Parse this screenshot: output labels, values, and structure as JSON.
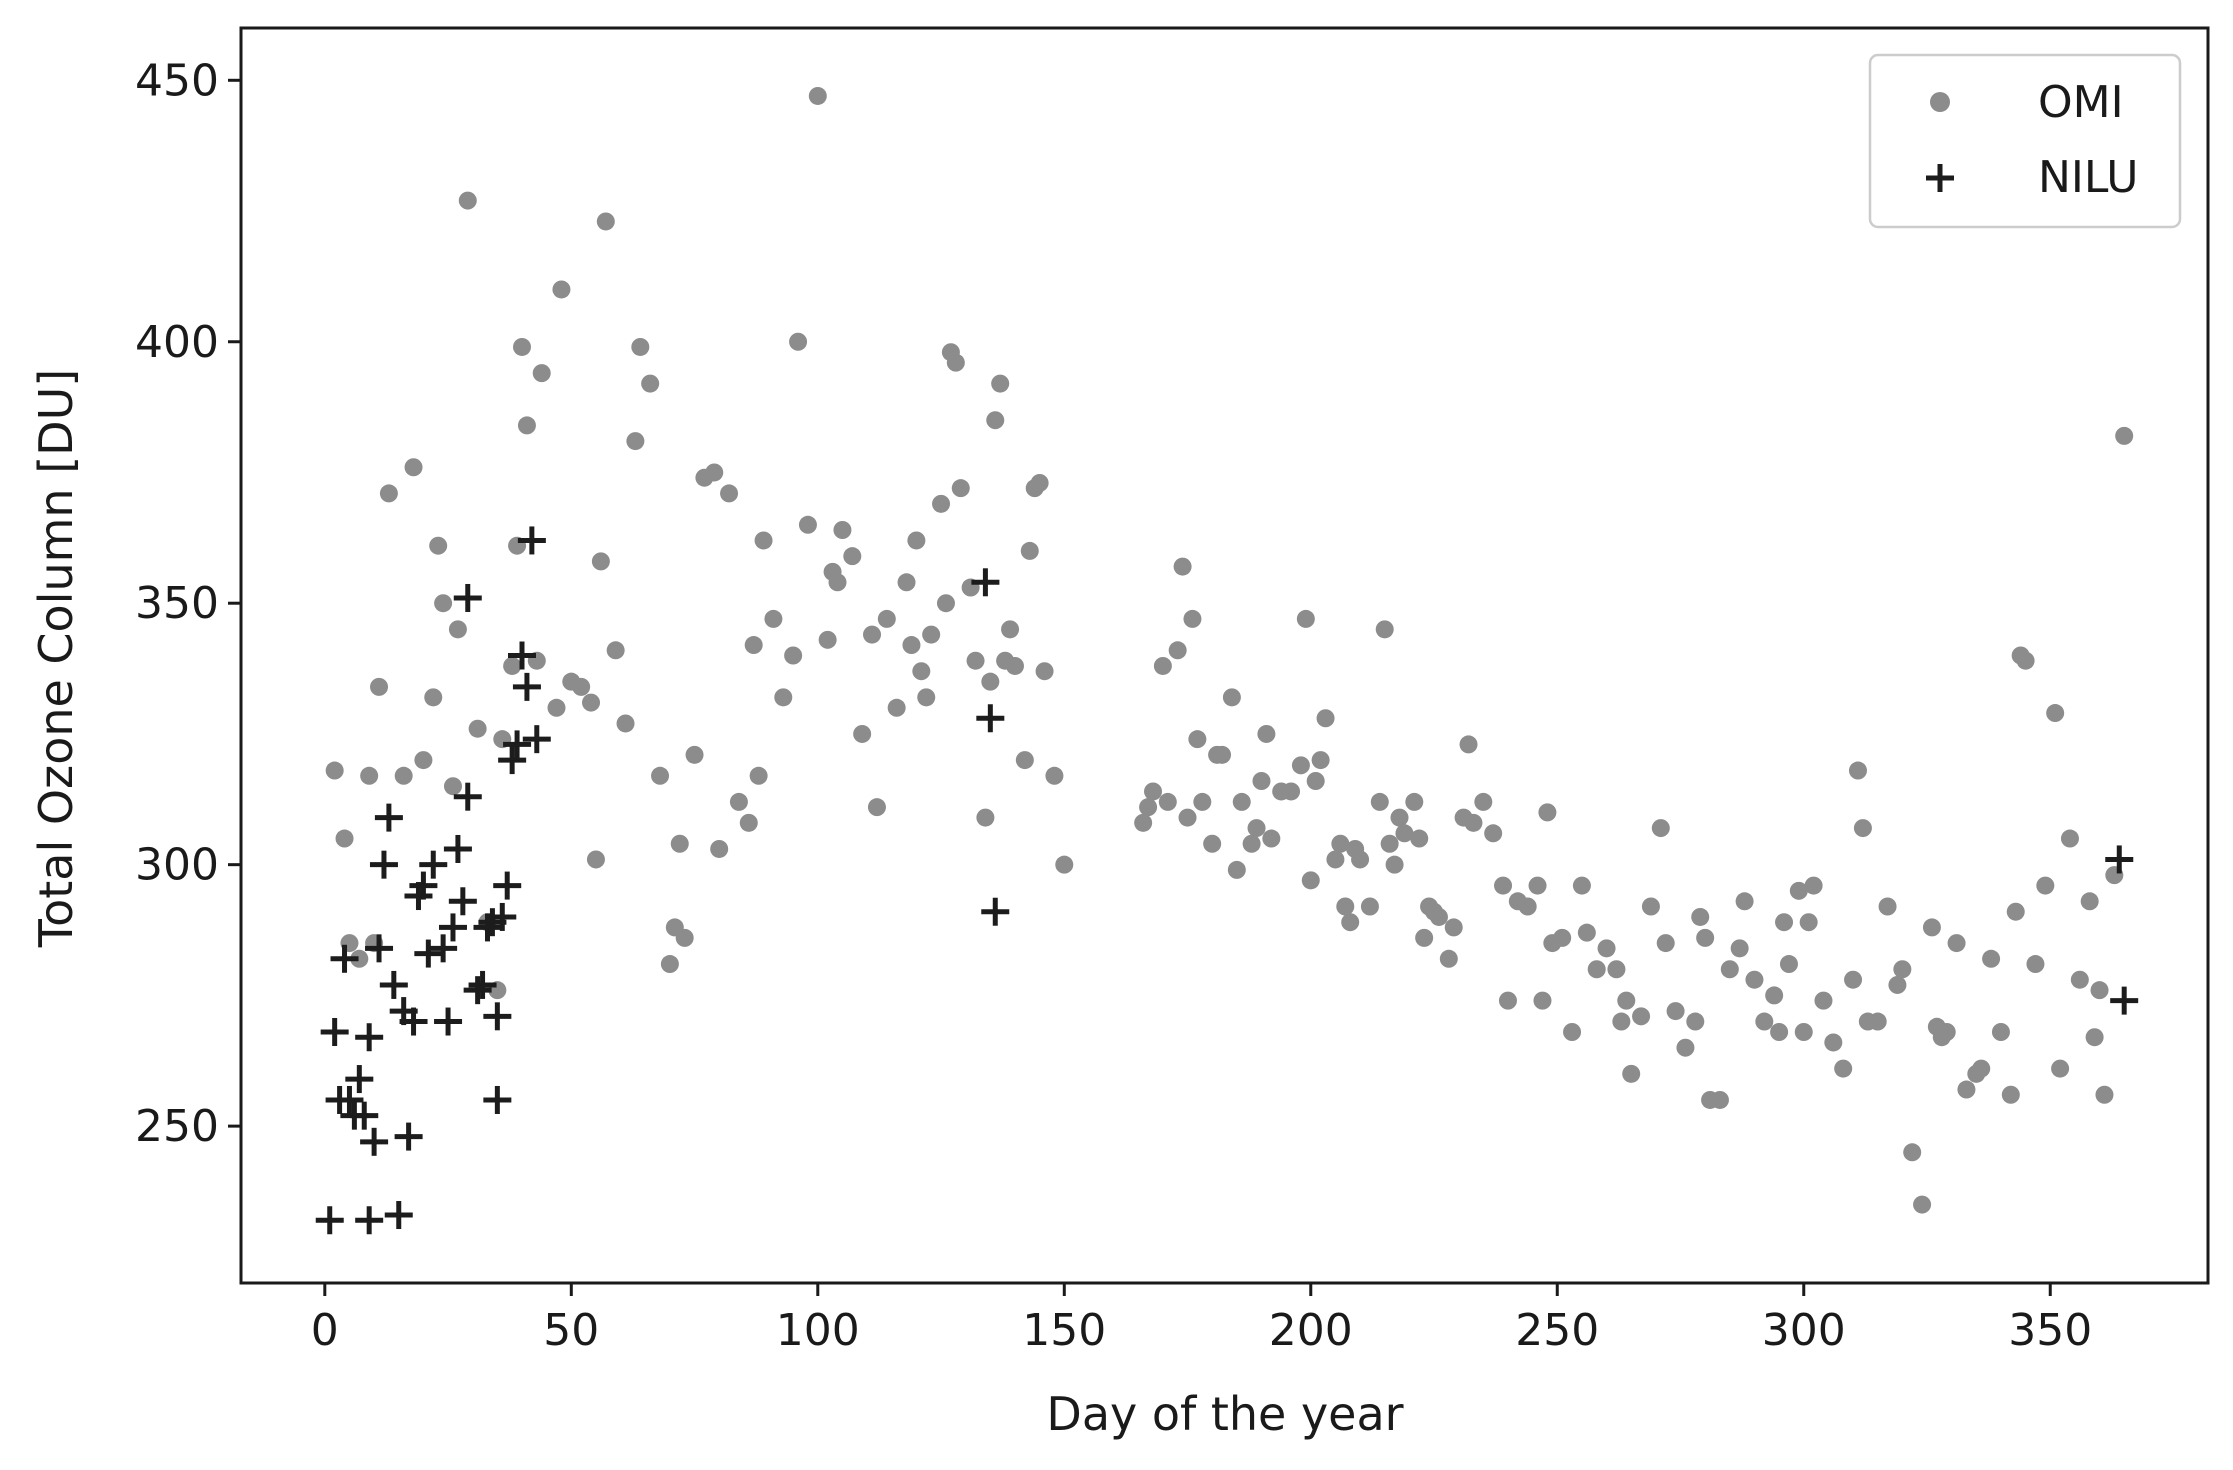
{
  "chart_data": {
    "type": "scatter",
    "title": "",
    "xlabel": "Day of the year",
    "ylabel": "Total Ozone Column  [DU]",
    "xlim": [
      -17,
      382
    ],
    "ylim": [
      220,
      460
    ],
    "xticks": [
      0,
      50,
      100,
      150,
      200,
      250,
      300,
      350
    ],
    "yticks": [
      250,
      300,
      350,
      400,
      450
    ],
    "grid": false,
    "legend_position": "top-right",
    "series": [
      {
        "name": "OMI",
        "marker": "circle",
        "color": "#8c8c8c",
        "points": [
          [
            2,
            318
          ],
          [
            4,
            305
          ],
          [
            5,
            285
          ],
          [
            7,
            282
          ],
          [
            9,
            317
          ],
          [
            10,
            285
          ],
          [
            11,
            334
          ],
          [
            13,
            371
          ],
          [
            16,
            317
          ],
          [
            18,
            376
          ],
          [
            20,
            320
          ],
          [
            22,
            332
          ],
          [
            23,
            361
          ],
          [
            24,
            350
          ],
          [
            26,
            315
          ],
          [
            27,
            345
          ],
          [
            29,
            427
          ],
          [
            31,
            326
          ],
          [
            33,
            289
          ],
          [
            35,
            276
          ],
          [
            36,
            324
          ],
          [
            38,
            338
          ],
          [
            39,
            361
          ],
          [
            40,
            399
          ],
          [
            41,
            384
          ],
          [
            43,
            339
          ],
          [
            44,
            394
          ],
          [
            47,
            330
          ],
          [
            48,
            410
          ],
          [
            50,
            335
          ],
          [
            52,
            334
          ],
          [
            54,
            331
          ],
          [
            55,
            301
          ],
          [
            56,
            358
          ],
          [
            57,
            423
          ],
          [
            59,
            341
          ],
          [
            61,
            327
          ],
          [
            63,
            381
          ],
          [
            64,
            399
          ],
          [
            66,
            392
          ],
          [
            68,
            317
          ],
          [
            70,
            281
          ],
          [
            71,
            288
          ],
          [
            72,
            304
          ],
          [
            73,
            286
          ],
          [
            75,
            321
          ],
          [
            77,
            374
          ],
          [
            79,
            375
          ],
          [
            80,
            303
          ],
          [
            82,
            371
          ],
          [
            84,
            312
          ],
          [
            86,
            308
          ],
          [
            87,
            342
          ],
          [
            88,
            317
          ],
          [
            89,
            362
          ],
          [
            91,
            347
          ],
          [
            93,
            332
          ],
          [
            95,
            340
          ],
          [
            96,
            400
          ],
          [
            98,
            365
          ],
          [
            100,
            447
          ],
          [
            102,
            343
          ],
          [
            103,
            356
          ],
          [
            104,
            354
          ],
          [
            105,
            364
          ],
          [
            107,
            359
          ],
          [
            109,
            325
          ],
          [
            111,
            344
          ],
          [
            112,
            311
          ],
          [
            114,
            347
          ],
          [
            116,
            330
          ],
          [
            118,
            354
          ],
          [
            119,
            342
          ],
          [
            120,
            362
          ],
          [
            121,
            337
          ],
          [
            122,
            332
          ],
          [
            123,
            344
          ],
          [
            125,
            369
          ],
          [
            126,
            350
          ],
          [
            127,
            398
          ],
          [
            128,
            396
          ],
          [
            129,
            372
          ],
          [
            131,
            353
          ],
          [
            132,
            339
          ],
          [
            134,
            309
          ],
          [
            135,
            335
          ],
          [
            136,
            385
          ],
          [
            137,
            392
          ],
          [
            138,
            339
          ],
          [
            139,
            345
          ],
          [
            140,
            338
          ],
          [
            142,
            320
          ],
          [
            143,
            360
          ],
          [
            144,
            372
          ],
          [
            145,
            373
          ],
          [
            146,
            337
          ],
          [
            148,
            317
          ],
          [
            150,
            300
          ],
          [
            166,
            308
          ],
          [
            167,
            311
          ],
          [
            168,
            314
          ],
          [
            170,
            338
          ],
          [
            171,
            312
          ],
          [
            173,
            341
          ],
          [
            174,
            357
          ],
          [
            175,
            309
          ],
          [
            176,
            347
          ],
          [
            177,
            324
          ],
          [
            178,
            312
          ],
          [
            180,
            304
          ],
          [
            181,
            321
          ],
          [
            182,
            321
          ],
          [
            184,
            332
          ],
          [
            185,
            299
          ],
          [
            186,
            312
          ],
          [
            188,
            304
          ],
          [
            189,
            307
          ],
          [
            190,
            316
          ],
          [
            191,
            325
          ],
          [
            192,
            305
          ],
          [
            194,
            314
          ],
          [
            196,
            314
          ],
          [
            198,
            319
          ],
          [
            199,
            347
          ],
          [
            200,
            297
          ],
          [
            201,
            316
          ],
          [
            202,
            320
          ],
          [
            203,
            328
          ],
          [
            205,
            301
          ],
          [
            206,
            304
          ],
          [
            207,
            292
          ],
          [
            208,
            289
          ],
          [
            209,
            303
          ],
          [
            210,
            301
          ],
          [
            212,
            292
          ],
          [
            214,
            312
          ],
          [
            215,
            345
          ],
          [
            216,
            304
          ],
          [
            217,
            300
          ],
          [
            218,
            309
          ],
          [
            219,
            306
          ],
          [
            221,
            312
          ],
          [
            222,
            305
          ],
          [
            223,
            286
          ],
          [
            224,
            292
          ],
          [
            225,
            291
          ],
          [
            226,
            290
          ],
          [
            228,
            282
          ],
          [
            229,
            288
          ],
          [
            231,
            309
          ],
          [
            232,
            323
          ],
          [
            233,
            308
          ],
          [
            235,
            312
          ],
          [
            237,
            306
          ],
          [
            239,
            296
          ],
          [
            240,
            274
          ],
          [
            242,
            293
          ],
          [
            244,
            292
          ],
          [
            246,
            296
          ],
          [
            247,
            274
          ],
          [
            248,
            310
          ],
          [
            249,
            285
          ],
          [
            251,
            286
          ],
          [
            253,
            268
          ],
          [
            255,
            296
          ],
          [
            256,
            287
          ],
          [
            258,
            280
          ],
          [
            260,
            284
          ],
          [
            262,
            280
          ],
          [
            263,
            270
          ],
          [
            264,
            274
          ],
          [
            265,
            260
          ],
          [
            267,
            271
          ],
          [
            269,
            292
          ],
          [
            271,
            307
          ],
          [
            272,
            285
          ],
          [
            274,
            272
          ],
          [
            276,
            265
          ],
          [
            278,
            270
          ],
          [
            279,
            290
          ],
          [
            280,
            286
          ],
          [
            281,
            255
          ],
          [
            283,
            255
          ],
          [
            285,
            280
          ],
          [
            287,
            284
          ],
          [
            288,
            293
          ],
          [
            290,
            278
          ],
          [
            292,
            270
          ],
          [
            294,
            275
          ],
          [
            295,
            268
          ],
          [
            296,
            289
          ],
          [
            297,
            281
          ],
          [
            299,
            295
          ],
          [
            300,
            268
          ],
          [
            301,
            289
          ],
          [
            302,
            296
          ],
          [
            304,
            274
          ],
          [
            306,
            266
          ],
          [
            308,
            261
          ],
          [
            310,
            278
          ],
          [
            311,
            318
          ],
          [
            312,
            307
          ],
          [
            313,
            270
          ],
          [
            315,
            270
          ],
          [
            317,
            292
          ],
          [
            319,
            277
          ],
          [
            320,
            280
          ],
          [
            322,
            245
          ],
          [
            324,
            235
          ],
          [
            326,
            288
          ],
          [
            327,
            269
          ],
          [
            328,
            267
          ],
          [
            329,
            268
          ],
          [
            331,
            285
          ],
          [
            333,
            257
          ],
          [
            335,
            260
          ],
          [
            336,
            261
          ],
          [
            338,
            282
          ],
          [
            340,
            268
          ],
          [
            342,
            256
          ],
          [
            343,
            291
          ],
          [
            344,
            340
          ],
          [
            345,
            339
          ],
          [
            347,
            281
          ],
          [
            349,
            296
          ],
          [
            351,
            329
          ],
          [
            352,
            261
          ],
          [
            354,
            305
          ],
          [
            356,
            278
          ],
          [
            358,
            293
          ],
          [
            359,
            267
          ],
          [
            360,
            276
          ],
          [
            361,
            256
          ],
          [
            363,
            298
          ],
          [
            365,
            382
          ]
        ]
      },
      {
        "name": "NILU",
        "marker": "plus",
        "color": "#1c1c1c",
        "points": [
          [
            1,
            232
          ],
          [
            2,
            268
          ],
          [
            3,
            255
          ],
          [
            4,
            282
          ],
          [
            5,
            255
          ],
          [
            6,
            252
          ],
          [
            7,
            259
          ],
          [
            8,
            252
          ],
          [
            9,
            267
          ],
          [
            9,
            232
          ],
          [
            10,
            247
          ],
          [
            11,
            284
          ],
          [
            12,
            300
          ],
          [
            13,
            309
          ],
          [
            14,
            277
          ],
          [
            15,
            233
          ],
          [
            16,
            272
          ],
          [
            17,
            248
          ],
          [
            18,
            270
          ],
          [
            19,
            294
          ],
          [
            20,
            296
          ],
          [
            21,
            283
          ],
          [
            22,
            300
          ],
          [
            24,
            284
          ],
          [
            25,
            270
          ],
          [
            26,
            288
          ],
          [
            27,
            303
          ],
          [
            28,
            293
          ],
          [
            29,
            313
          ],
          [
            29,
            351
          ],
          [
            31,
            276
          ],
          [
            32,
            277
          ],
          [
            33,
            288
          ],
          [
            34,
            289
          ],
          [
            35,
            255
          ],
          [
            35,
            271
          ],
          [
            36,
            290
          ],
          [
            37,
            296
          ],
          [
            38,
            320
          ],
          [
            39,
            323
          ],
          [
            40,
            340
          ],
          [
            41,
            334
          ],
          [
            42,
            362
          ],
          [
            43,
            324
          ],
          [
            134,
            354
          ],
          [
            135,
            328
          ],
          [
            136,
            291
          ],
          [
            364,
            301
          ],
          [
            365,
            274
          ]
        ]
      }
    ]
  }
}
